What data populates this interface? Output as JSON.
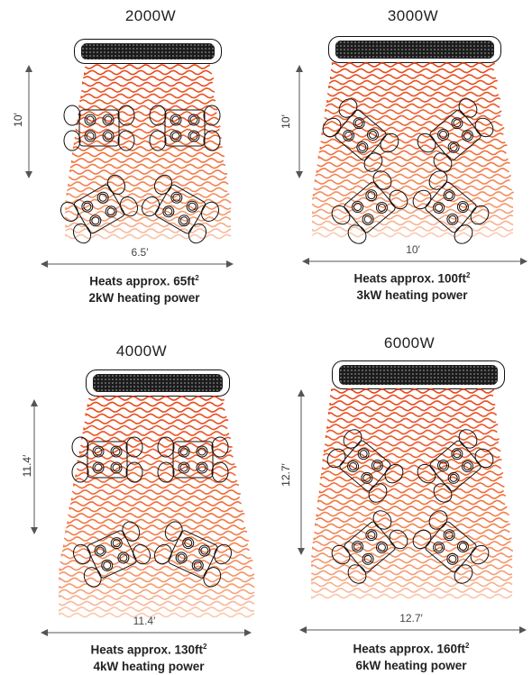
{
  "panels": [
    {
      "title": "2000W",
      "height_label": "10′",
      "width_label": "6.5′",
      "area_prefix": "Heats approx. 65ft",
      "area_sup": "2",
      "power": "2kW heating power"
    },
    {
      "title": "3000W",
      "height_label": "10′",
      "width_label": "10′",
      "area_prefix": "Heats approx. 100ft",
      "area_sup": "2",
      "power": "3kW heating power"
    },
    {
      "title": "4000W",
      "height_label": "11.4′",
      "width_label": "11.4′",
      "area_prefix": "Heats approx. 130ft",
      "area_sup": "2",
      "power": "4kW  heating power"
    },
    {
      "title": "6000W",
      "height_label": "12.7′",
      "width_label": "12.7′",
      "area_prefix": "Heats approx. 160ft",
      "area_sup": "2",
      "power": "6kW heating power"
    }
  ],
  "colors": {
    "heat_top": "#e8461a",
    "heat_mid": "#f0703a",
    "heat_bottom": "#f6b08a",
    "outline": "#111111"
  }
}
